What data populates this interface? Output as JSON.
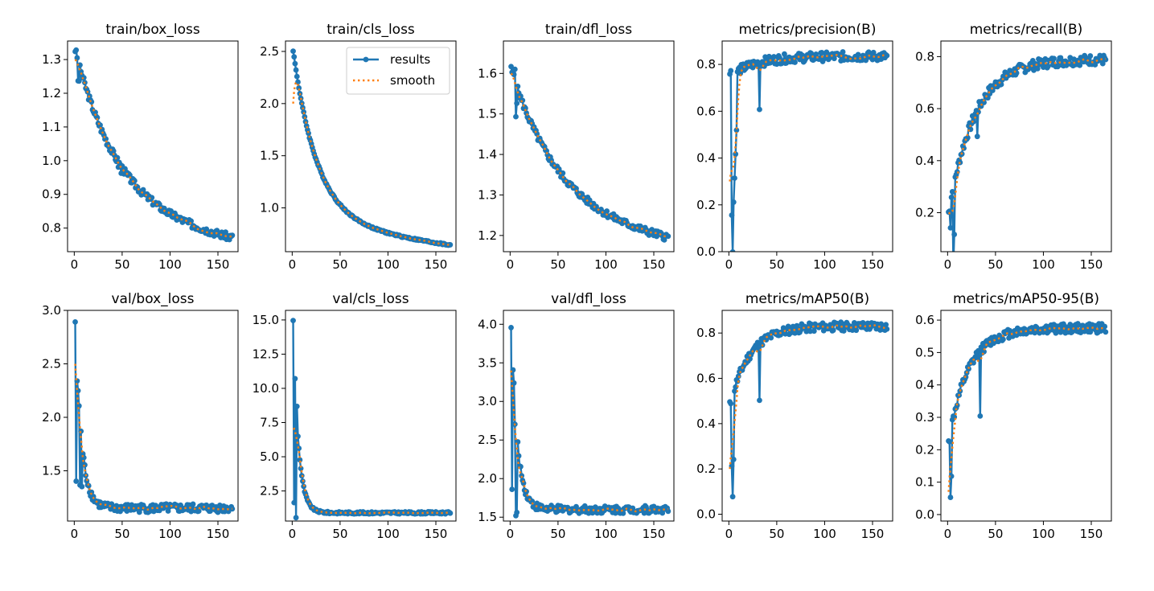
{
  "chart_data": [
    {
      "type": "line",
      "title": "train/box_loss",
      "xlim": [
        -7,
        171
      ],
      "ylim": [
        0.73,
        1.355
      ],
      "xticks": [
        0,
        50,
        100,
        150
      ],
      "yticks": [
        0.8,
        0.9,
        1.0,
        1.1,
        1.2,
        1.3
      ],
      "ytick_labels": [
        "0.8",
        "0.9",
        "1.0",
        "1.1",
        "1.2",
        "1.3"
      ],
      "curve": {
        "start": 1.33,
        "end": 0.758,
        "k": 3.6,
        "lin": 0.07,
        "noise": 0.011,
        "spikes": [
          [
            3,
            -0.06
          ],
          [
            4,
            -0.05
          ],
          [
            5,
            0.008
          ],
          [
            45,
            -0.015
          ],
          [
            48,
            -0.02
          ]
        ],
        "sstart": 1.3,
        "smooth_spikes": []
      },
      "series": [
        {
          "name": "results"
        },
        {
          "name": "smooth"
        }
      ]
    },
    {
      "type": "line",
      "title": "train/cls_loss",
      "xlim": [
        -7,
        171
      ],
      "ylim": [
        0.58,
        2.6
      ],
      "xticks": [
        0,
        50,
        100,
        150
      ],
      "yticks": [
        1.0,
        1.5,
        2.0,
        2.5
      ],
      "ytick_labels": [
        "1.0",
        "1.5",
        "2.0",
        "2.5"
      ],
      "legend": {
        "position": "top-right",
        "entries": [
          "results",
          "smooth"
        ]
      },
      "curve": {
        "start": 2.51,
        "end": 0.64,
        "k": 6.5,
        "lin": 0.22,
        "noise": 0.008,
        "spikes": [],
        "sstart": 2.0,
        "smooth_spikes": []
      },
      "series": [
        {
          "name": "results"
        },
        {
          "name": "smooth"
        }
      ]
    },
    {
      "type": "line",
      "title": "train/dfl_loss",
      "xlim": [
        -7,
        171
      ],
      "ylim": [
        1.16,
        1.68
      ],
      "xticks": [
        0,
        50,
        100,
        150
      ],
      "yticks": [
        1.2,
        1.3,
        1.4,
        1.5,
        1.6
      ],
      "ytick_labels": [
        "1.2",
        "1.3",
        "1.4",
        "1.5",
        "1.6"
      ],
      "curve": {
        "start": 1.61,
        "end": 1.18,
        "k": 3.2,
        "lin": 0.05,
        "noise": 0.009,
        "spikes": [
          [
            3,
            0.01
          ],
          [
            4,
            0.03
          ],
          [
            5,
            -0.08
          ],
          [
            6,
            -0.04
          ]
        ],
        "sstart": 1.6,
        "smooth_spikes": []
      },
      "series": [
        {
          "name": "results"
        },
        {
          "name": "smooth"
        }
      ]
    },
    {
      "type": "line",
      "title": "metrics/precision(B)",
      "xlim": [
        -7,
        171
      ],
      "ylim": [
        0.0,
        0.9
      ],
      "xticks": [
        0,
        50,
        100,
        150
      ],
      "yticks": [
        0.0,
        0.2,
        0.4,
        0.6,
        0.8
      ],
      "ytick_labels": [
        "0.0",
        "0.2",
        "0.4",
        "0.6",
        "0.8"
      ],
      "curve": {
        "start": 0.75,
        "end": 0.835,
        "k": 6,
        "lin": 0.0,
        "noise": 0.02,
        "spikes": [
          [
            1,
            0.02
          ],
          [
            2,
            -0.6
          ],
          [
            3,
            -0.76
          ],
          [
            4,
            -0.55
          ],
          [
            5,
            -0.45
          ],
          [
            6,
            -0.35
          ],
          [
            7,
            -0.25
          ],
          [
            31,
            -0.2
          ]
        ],
        "sstart": 0.3,
        "smooth_spikes": []
      },
      "series": [
        {
          "name": "results"
        },
        {
          "name": "smooth"
        }
      ]
    },
    {
      "type": "line",
      "title": "metrics/recall(B)",
      "xlim": [
        -7,
        171
      ],
      "ylim": [
        0.05,
        0.86
      ],
      "xticks": [
        0,
        50,
        100,
        150
      ],
      "yticks": [
        0.2,
        0.4,
        0.6,
        0.8
      ],
      "ytick_labels": [
        "0.2",
        "0.4",
        "0.6",
        "0.8"
      ],
      "curve": {
        "start": 0.2,
        "end": 0.79,
        "k": 6,
        "lin": 0.0,
        "noise": 0.02,
        "spikes": [
          [
            2,
            -0.1
          ],
          [
            5,
            -0.3
          ],
          [
            6,
            -0.2
          ],
          [
            30,
            -0.1
          ]
        ],
        "sstart": 0.2,
        "smooth_spikes": []
      },
      "series": [
        {
          "name": "results"
        },
        {
          "name": "smooth"
        }
      ]
    },
    {
      "type": "line",
      "title": "val/box_loss",
      "xlim": [
        -7,
        171
      ],
      "ylim": [
        1.03,
        3.0
      ],
      "xticks": [
        0,
        50,
        100,
        150
      ],
      "yticks": [
        1.5,
        2.0,
        2.5,
        3.0
      ],
      "ytick_labels": [
        "1.5",
        "2.0",
        "2.5",
        "3.0"
      ],
      "curve": {
        "start": 2.9,
        "end": 1.15,
        "k": 25,
        "lin": 0.0,
        "noise": 0.04,
        "spikes": [
          [
            1,
            -1.25
          ],
          [
            2,
            -0.1
          ],
          [
            5,
            -0.6
          ],
          [
            7,
            -0.4
          ]
        ],
        "sstart": 2.5,
        "smooth_spikes": []
      },
      "series": [
        {
          "name": "results"
        },
        {
          "name": "smooth"
        }
      ]
    },
    {
      "type": "line",
      "title": "val/cls_loss",
      "xlim": [
        -7,
        171
      ],
      "ylim": [
        0.3,
        15.7
      ],
      "xticks": [
        0,
        50,
        100,
        150
      ],
      "yticks": [
        2.5,
        5.0,
        7.5,
        10.0,
        12.5,
        15.0
      ],
      "ytick_labels": [
        "2.5",
        "5.0",
        "7.5",
        "10.0",
        "12.5",
        "15.0"
      ],
      "curve": {
        "start": 15.0,
        "end": 0.9,
        "k": 30,
        "lin": 0.0,
        "noise": 0.08,
        "spikes": [
          [
            1,
            -11
          ],
          [
            3,
            -8.5
          ],
          [
            4,
            1.0
          ]
        ],
        "sstart": 7.0,
        "smooth_spikes": []
      },
      "series": [
        {
          "name": "results"
        },
        {
          "name": "smooth"
        }
      ]
    },
    {
      "type": "line",
      "title": "val/dfl_loss",
      "xlim": [
        -7,
        171
      ],
      "ylim": [
        1.45,
        4.18
      ],
      "xticks": [
        0,
        50,
        100,
        150
      ],
      "yticks": [
        1.5,
        2.0,
        2.5,
        3.0,
        3.5,
        4.0
      ],
      "ytick_labels": [
        "1.5",
        "2.0",
        "2.5",
        "3.0",
        "3.5",
        "4.0"
      ],
      "curve": {
        "start": 4.0,
        "end": 1.6,
        "k": 25,
        "lin": 0.0,
        "noise": 0.05,
        "spikes": [
          [
            1,
            -1.8
          ],
          [
            3,
            0.12
          ],
          [
            4,
            -0.2
          ],
          [
            5,
            -1.2
          ],
          [
            6,
            -1.0
          ]
        ],
        "sstart": 3.4,
        "smooth_spikes": []
      },
      "series": [
        {
          "name": "results"
        },
        {
          "name": "smooth"
        }
      ]
    },
    {
      "type": "line",
      "title": "metrics/mAP50(B)",
      "xlim": [
        -7,
        171
      ],
      "ylim": [
        -0.03,
        0.9
      ],
      "xticks": [
        0,
        50,
        100,
        150
      ],
      "yticks": [
        0.0,
        0.2,
        0.4,
        0.6,
        0.8
      ],
      "ytick_labels": [
        "0.0",
        "0.2",
        "0.4",
        "0.6",
        "0.8"
      ],
      "curve": {
        "start": 0.48,
        "end": 0.83,
        "k": 8,
        "lin": 0.0,
        "noise": 0.02,
        "spikes": [
          [
            2,
            -0.3
          ],
          [
            3,
            -0.45
          ],
          [
            4,
            -0.3
          ],
          [
            31,
            -0.25
          ]
        ],
        "sstart": 0.2,
        "smooth_spikes": []
      },
      "series": [
        {
          "name": "results"
        },
        {
          "name": "smooth"
        }
      ]
    },
    {
      "type": "line",
      "title": "metrics/mAP50-95(B)",
      "xlim": [
        -7,
        171
      ],
      "ylim": [
        -0.02,
        0.63
      ],
      "xticks": [
        0,
        50,
        100,
        150
      ],
      "yticks": [
        0.0,
        0.1,
        0.2,
        0.3,
        0.4,
        0.5,
        0.6
      ],
      "ytick_labels": [
        "0.0",
        "0.1",
        "0.2",
        "0.3",
        "0.4",
        "0.5",
        "0.6"
      ],
      "curve": {
        "start": 0.22,
        "end": 0.575,
        "k": 8,
        "lin": 0.0,
        "noise": 0.015,
        "spikes": [
          [
            2,
            -0.2
          ],
          [
            3,
            -0.15
          ],
          [
            33,
            -0.2
          ]
        ],
        "sstart": 0.07,
        "smooth_spikes": []
      },
      "series": [
        {
          "name": "results"
        },
        {
          "name": "smooth"
        }
      ]
    }
  ],
  "n_epochs": 165,
  "colors": {
    "results": "#1f77b4",
    "smooth": "#ff7f0e",
    "axes": "#000000"
  }
}
